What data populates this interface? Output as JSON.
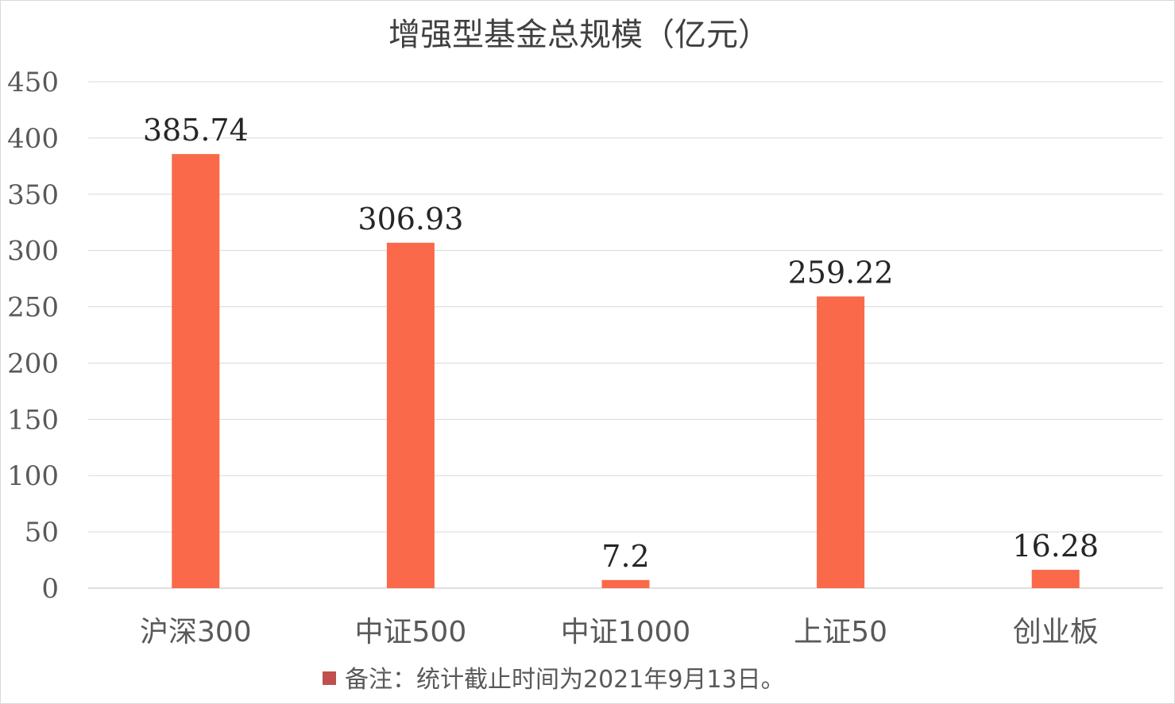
{
  "chart_data": {
    "type": "bar",
    "title": "增强型基金总规模（亿元）",
    "categories": [
      "沪深300",
      "中证500",
      "中证1000",
      "上证50",
      "创业板"
    ],
    "series": [
      {
        "values": [
          385.74,
          306.93,
          7.2,
          259.22,
          16.28
        ]
      }
    ],
    "data_labels": [
      "385.74",
      "306.93",
      "7.2",
      "259.22",
      "16.28"
    ],
    "ylim": [
      0,
      450
    ],
    "yticks": [
      0,
      50,
      100,
      150,
      200,
      250,
      300,
      350,
      400,
      450
    ],
    "grid": true,
    "legend": {
      "label": "备注：统计截止时间为2021年9月13日。",
      "position": "bottom",
      "marker_color": "#C0504D"
    },
    "colors": {
      "bar": "#F9694A",
      "grid": "#D9D9D9",
      "text": "#595959"
    }
  }
}
